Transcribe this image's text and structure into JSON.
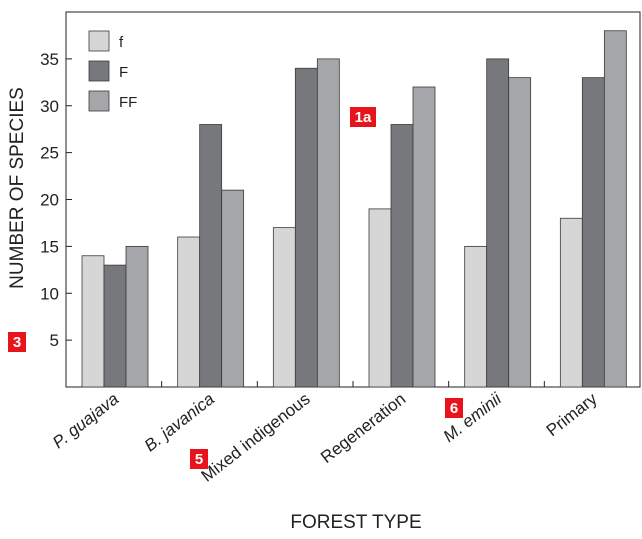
{
  "chart_data": {
    "type": "bar",
    "categories": [
      "P. guajava",
      "B. javanica",
      "Mixed indigenous",
      "Regeneration",
      "M. eminii",
      "Primary"
    ],
    "categories_italic": [
      true,
      true,
      false,
      false,
      true,
      false
    ],
    "series": [
      {
        "name": "f",
        "values": [
          14,
          16,
          17,
          19,
          15,
          18
        ],
        "color": "#d6d6d6"
      },
      {
        "name": "F",
        "values": [
          13,
          28,
          34,
          28,
          35,
          33
        ],
        "color": "#77787b"
      },
      {
        "name": "FF",
        "values": [
          15,
          21,
          35,
          32,
          33,
          38
        ],
        "color": "#a5a6a9"
      }
    ],
    "xlabel": "FOREST TYPE",
    "ylabel": "NUMBER OF SPECIES",
    "yticks": [
      5,
      10,
      15,
      20,
      25,
      30,
      35
    ],
    "ylim": [
      0,
      40
    ],
    "grid": false,
    "legend_position": "top-left"
  },
  "badges": [
    {
      "label": "1a",
      "near": "plot-top-center"
    },
    {
      "label": "3",
      "near": "y-axis-title"
    },
    {
      "label": "5",
      "near": "x-tick-labels"
    },
    {
      "label": "6",
      "near": "x-tick-labels"
    }
  ],
  "colors": {
    "badge": "#e8141c",
    "edge": "#3a3a3a"
  }
}
